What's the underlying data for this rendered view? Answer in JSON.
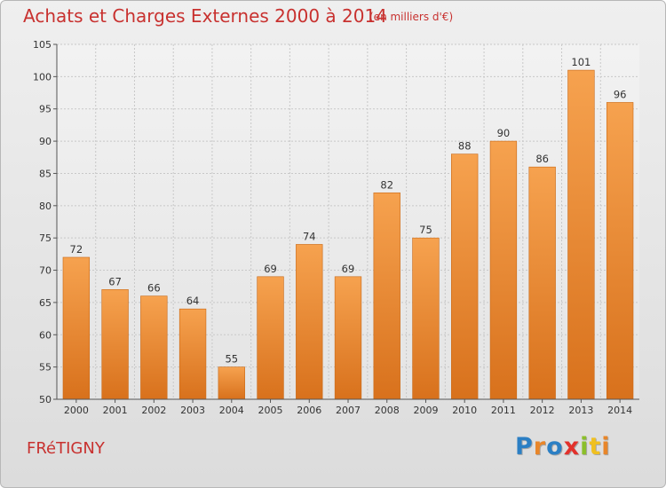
{
  "chart_data": {
    "type": "bar",
    "title": "Achats et Charges Externes 2000 à 2014",
    "subtitle": "(en milliers d'€)",
    "categories": [
      "2000",
      "2001",
      "2002",
      "2003",
      "2004",
      "2005",
      "2006",
      "2007",
      "2008",
      "2009",
      "2010",
      "2011",
      "2012",
      "2013",
      "2014"
    ],
    "values": [
      72,
      67,
      66,
      64,
      55,
      69,
      74,
      69,
      82,
      75,
      88,
      90,
      86,
      101,
      96
    ],
    "ylim": [
      50,
      105
    ],
    "yticks": [
      50,
      55,
      60,
      65,
      70,
      75,
      80,
      85,
      90,
      95,
      100,
      105
    ],
    "grid": true,
    "bar_color_top": "#f6a24f",
    "bar_color_bottom": "#d8711c"
  },
  "footer": {
    "commune": "FRéTIGNY",
    "logo": {
      "letters": [
        "P",
        "r",
        "o",
        "x",
        "i",
        "t",
        "i"
      ],
      "colors": [
        "#2b7fc4",
        "#e8862a",
        "#2b7fc4",
        "#e2312b",
        "#8bbf2a",
        "#f0c020",
        "#e8862a"
      ]
    }
  }
}
